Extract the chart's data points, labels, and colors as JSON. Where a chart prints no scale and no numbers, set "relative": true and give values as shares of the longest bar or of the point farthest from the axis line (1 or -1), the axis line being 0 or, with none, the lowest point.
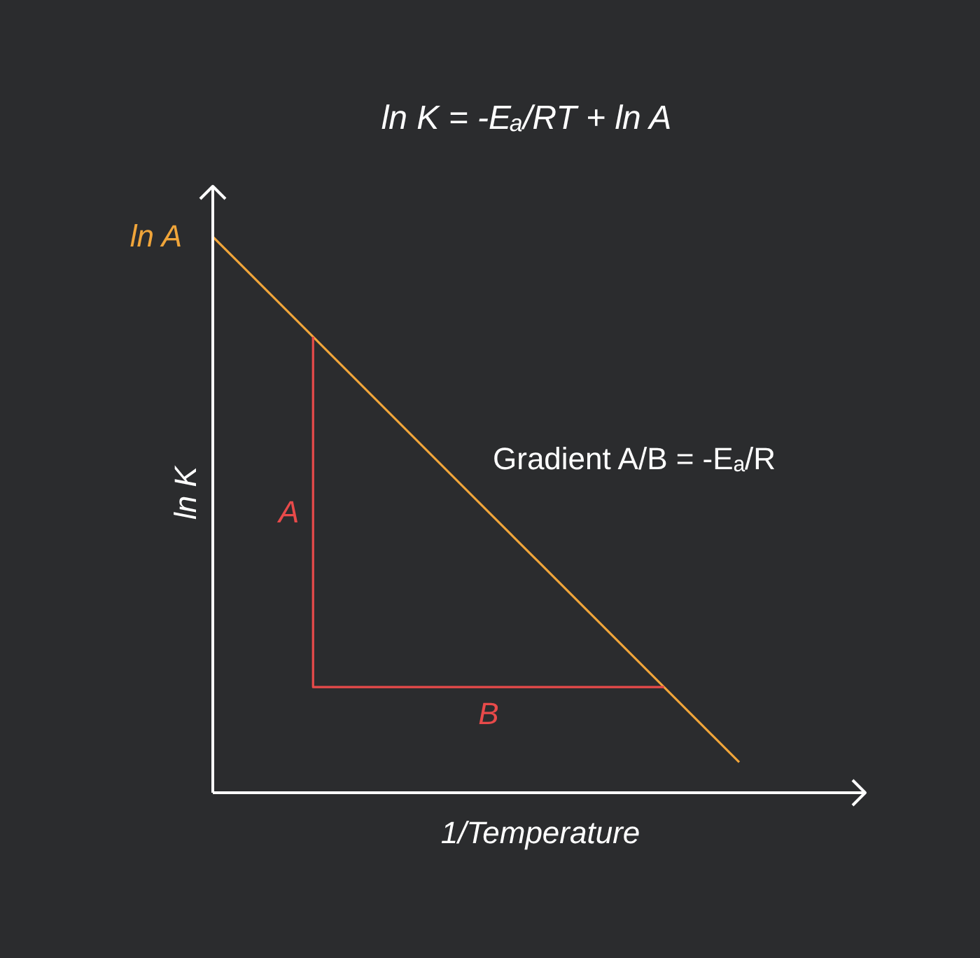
{
  "chart_data": {
    "type": "line",
    "title": "ln K = -Eₐ/RT  +  ln A",
    "xlabel": "1/Temperature",
    "ylabel": "ln K",
    "relative": true,
    "categories": [
      null,
      null,
      null,
      null,
      null,
      null,
      null,
      null,
      null,
      null,
      null,
      null,
      null,
      null,
      null,
      null,
      null,
      null,
      null,
      null,
      null,
      null
    ],
    "series": [
      {
        "color": "#f0a53a",
        "values": [
          1.0,
          0.955,
          0.91,
          0.865,
          0.82,
          0.775,
          0.73,
          0.685,
          0.64,
          0.595,
          0.55,
          0.505,
          0.46,
          0.415,
          0.37,
          0.325,
          0.28,
          0.235,
          0.19,
          0.145,
          0.1,
          0.055
        ]
      },
      {
        "type": "step",
        "color": "#e84a4a",
        "values": [
          null,
          null,
          null,
          null,
          0.82,
          0.19,
          0.19,
          0.19,
          0.19,
          0.19,
          0.19,
          0.19,
          0.19,
          0.19,
          0.19,
          0.19,
          0.19,
          0.19,
          0.19,
          null,
          null,
          null
        ]
      }
    ],
    "annotations": [
      "ln A",
      "A",
      "B",
      "Gradient  A/B = -Eₐ/R"
    ]
  }
}
